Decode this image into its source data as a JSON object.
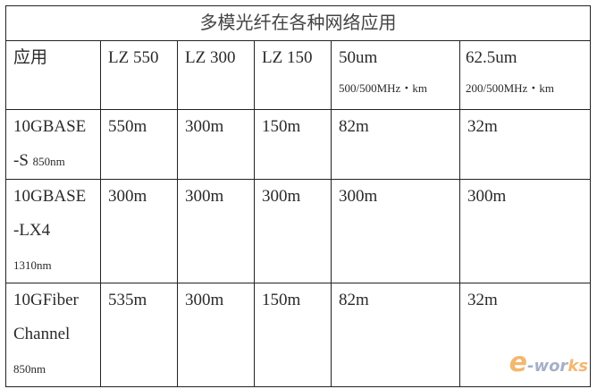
{
  "title": "多模光纤在各种网络应用",
  "headers": [
    {
      "main": "应用",
      "sub": ""
    },
    {
      "main": "LZ 550",
      "sub": ""
    },
    {
      "main": "LZ 300",
      "sub": ""
    },
    {
      "main": "LZ 150",
      "sub": ""
    },
    {
      "main": "50um",
      "sub": "500/500MHz・km"
    },
    {
      "main": "62.5um",
      "sub": "200/500MHz・km"
    }
  ],
  "rows": [
    {
      "app_lines": [
        "10GBASE",
        "-S"
      ],
      "wavelength": "850nm",
      "values": [
        "550m",
        "300m",
        "150m",
        "82m",
        "32m"
      ]
    },
    {
      "app_lines": [
        "10GBASE",
        "-LX4"
      ],
      "wavelength": "1310nm",
      "values": [
        "300m",
        "300m",
        "300m",
        "300m",
        "300m"
      ]
    },
    {
      "app_lines": [
        "10GFiber",
        "Channel"
      ],
      "wavelength": "850nm",
      "values": [
        "535m",
        "300m",
        "150m",
        "82m",
        "32m"
      ]
    }
  ],
  "watermark": {
    "e": "e",
    "text1": "-wor",
    "text2": "ks",
    "accent": "#f0a040",
    "color": "#8a93b8"
  }
}
